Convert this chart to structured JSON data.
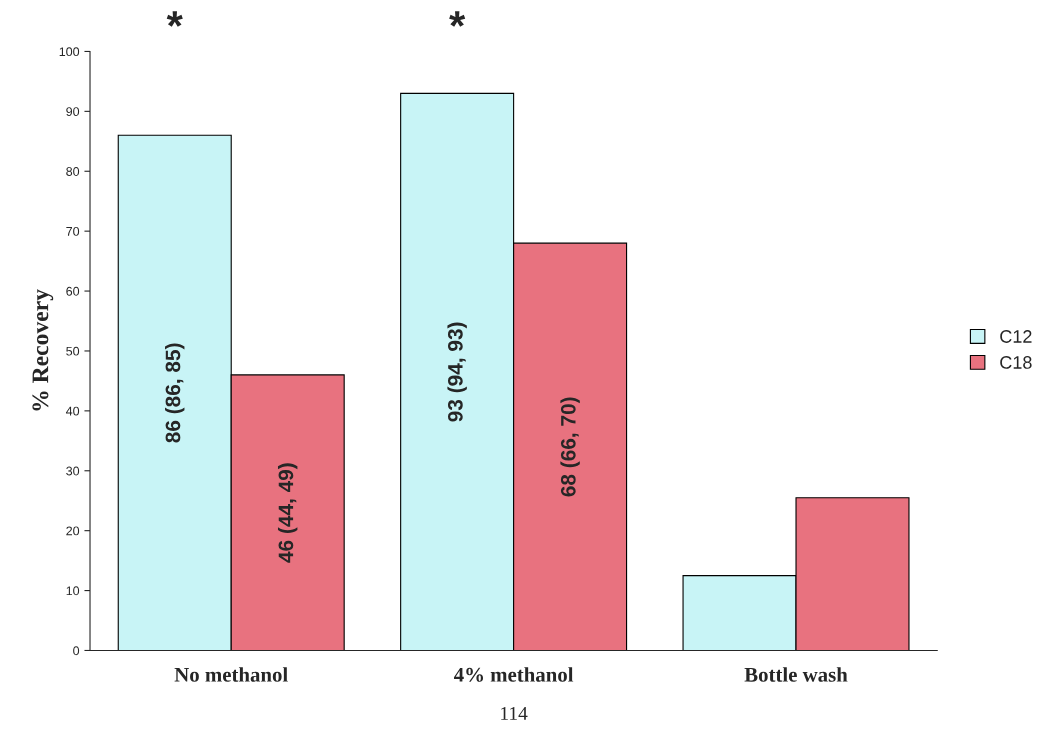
{
  "chart_data": {
    "type": "bar",
    "ylabel": "% Recovery",
    "categories": [
      "No methanol",
      "4% methanol",
      "Bottle wash"
    ],
    "series": [
      {
        "name": "C12",
        "color": "#c8f4f6",
        "values": [
          86,
          93,
          12.5
        ],
        "value_labels": [
          "86 (86, 85)",
          "93 (94, 93)",
          null
        ]
      },
      {
        "name": "C18",
        "color": "#e8727f",
        "values": [
          46,
          68,
          25.5
        ],
        "value_labels": [
          "46 (44, 49)",
          "68 (66, 70)",
          null
        ]
      }
    ],
    "ylim": [
      0,
      100
    ],
    "yticks": [
      0,
      10,
      20,
      30,
      40,
      50,
      60,
      70,
      80,
      90,
      100
    ],
    "grid": false,
    "legend": "right",
    "annotations": [
      "*",
      "*",
      "114"
    ]
  }
}
